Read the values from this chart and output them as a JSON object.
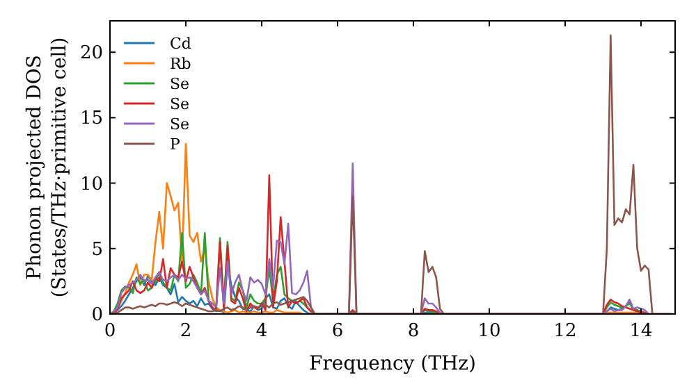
{
  "chart_data": {
    "type": "line",
    "xlabel": "Frequency (THz)",
    "ylabel": "Phonon projected DOS\n(States/THz·primitive cell)",
    "xlim": [
      0,
      14.9
    ],
    "ylim": [
      0,
      22.4
    ],
    "xticks": [
      0,
      2,
      4,
      6,
      8,
      10,
      12,
      14
    ],
    "yticks": [
      0,
      5,
      10,
      15,
      20
    ],
    "legend": "top left",
    "grid": false,
    "marker": "none",
    "line_style": "solid",
    "x": [
      0,
      0.1,
      0.2,
      0.3,
      0.4,
      0.5,
      0.6,
      0.7,
      0.8,
      0.9,
      1.0,
      1.1,
      1.2,
      1.3,
      1.4,
      1.5,
      1.6,
      1.7,
      1.8,
      1.9,
      2.0,
      2.1,
      2.2,
      2.3,
      2.4,
      2.5,
      2.6,
      2.7,
      2.8,
      2.9,
      3.0,
      3.1,
      3.2,
      3.3,
      3.4,
      3.5,
      3.6,
      3.7,
      3.8,
      3.9,
      4.0,
      4.1,
      4.2,
      4.3,
      4.4,
      4.5,
      4.6,
      4.7,
      4.8,
      4.9,
      5.0,
      5.1,
      5.2,
      5.3,
      5.4,
      5.5,
      6.3,
      6.4,
      6.5,
      8.2,
      8.3,
      8.4,
      8.5,
      8.6,
      8.7,
      8.8,
      13.0,
      13.1,
      13.2,
      13.3,
      13.4,
      13.5,
      13.6,
      13.7,
      13.8,
      13.9,
      14.0,
      14.1,
      14.2,
      14.3,
      14.8
    ],
    "series": [
      {
        "name": "Cd",
        "color": "#1f77b4",
        "values": [
          0,
          0.1,
          0.3,
          0.6,
          1.0,
          1.5,
          2.0,
          2.5,
          2.8,
          2.2,
          2.9,
          2.5,
          2.2,
          2.8,
          2.2,
          2.0,
          1.5,
          2.3,
          0.9,
          1.3,
          1.0,
          0.8,
          1.0,
          0.6,
          1.2,
          0.7,
          0.8,
          0.4,
          0.2,
          0.3,
          0.1,
          3.8,
          2.2,
          1.3,
          1.0,
          0.4,
          0.3,
          0.2,
          0.6,
          0.3,
          0.4,
          1.2,
          1.5,
          0.5,
          0.4,
          1.0,
          1.2,
          0.6,
          0.4,
          1.0,
          0.6,
          0.3,
          0.1,
          0,
          0,
          0,
          0,
          0.1,
          0,
          0,
          0.1,
          0.1,
          0.1,
          0.1,
          0,
          0,
          0,
          0.2,
          0.5,
          0.4,
          0.3,
          0.4,
          0.6,
          0.9,
          0.3,
          0.2,
          0.1,
          null,
          null,
          null,
          null
        ]
      },
      {
        "name": "Rb",
        "color": "#ff7f0e",
        "values": [
          0,
          0.1,
          0.4,
          1.0,
          1.6,
          2.4,
          3.0,
          3.8,
          2.2,
          3.0,
          3.0,
          2.6,
          5.5,
          7.8,
          5.0,
          10.0,
          9.0,
          7.9,
          8.5,
          4.0,
          13.0,
          6.0,
          5.5,
          6.2,
          4.0,
          5.0,
          2.5,
          1.2,
          0.5,
          0.3,
          0.2,
          0.1,
          0.2,
          0.3,
          0.1,
          0.2,
          0.1,
          0.1,
          0.2,
          0.1,
          0.1,
          0.2,
          0.1,
          0.1,
          0.3,
          0.2,
          0.1,
          0.1,
          0.1,
          0.1,
          0.1,
          0,
          0,
          0,
          0,
          0,
          0,
          0,
          0,
          0,
          0,
          0,
          0,
          0,
          0,
          0,
          0,
          0.1,
          0.1,
          0.1,
          0.1,
          0.1,
          0.1,
          0.1,
          0.1,
          0.1,
          0,
          0,
          null,
          null,
          null
        ]
      },
      {
        "name": "Se",
        "color": "#2ca02c",
        "values": [
          0,
          0.2,
          0.8,
          1.8,
          2.1,
          2.0,
          1.6,
          2.8,
          2.3,
          2.6,
          1.8,
          2.0,
          2.5,
          3.2,
          2.4,
          2.0,
          1.8,
          3.0,
          2.5,
          6.2,
          2.0,
          2.3,
          3.0,
          2.4,
          1.5,
          6.2,
          1.0,
          0.8,
          0.5,
          5.8,
          0.8,
          5.5,
          1.2,
          1.0,
          2.4,
          1.8,
          0.5,
          1.5,
          1.0,
          0.8,
          0.8,
          1.2,
          3.5,
          1.0,
          3.0,
          3.6,
          1.5,
          1.2,
          1.0,
          0.8,
          1.0,
          0.8,
          0.5,
          0.2,
          0,
          0,
          0,
          0.2,
          0,
          0,
          0.3,
          0.2,
          0.2,
          0.1,
          0,
          0,
          0,
          0.5,
          0.9,
          0.7,
          0.6,
          0.5,
          0.6,
          0.8,
          0.4,
          0.3,
          0.2,
          0.1,
          0,
          null,
          null
        ]
      },
      {
        "name": "Se",
        "color": "#d62728",
        "values": [
          0,
          0.1,
          0.4,
          1.2,
          1.5,
          1.8,
          2.5,
          1.8,
          1.6,
          1.8,
          2.4,
          2.0,
          2.8,
          2.5,
          4.2,
          2.0,
          3.5,
          3.0,
          2.8,
          4.0,
          2.5,
          3.6,
          2.8,
          2.0,
          1.5,
          2.0,
          1.0,
          0.5,
          0.3,
          5.5,
          0.5,
          5.2,
          1.0,
          0.8,
          2.0,
          1.2,
          0.2,
          0.8,
          0.5,
          0.4,
          0.8,
          0.3,
          10.6,
          0.5,
          2.5,
          7.4,
          4.0,
          0.5,
          1.0,
          0.8,
          1.0,
          1.2,
          0.5,
          0.2,
          0,
          0,
          0,
          0.3,
          0,
          0,
          0.4,
          0.3,
          0.3,
          0.2,
          0,
          0,
          0,
          0.7,
          1.1,
          0.9,
          0.8,
          0.6,
          0.5,
          0.4,
          0.3,
          0.2,
          0.1,
          0.1,
          0,
          0,
          0
        ]
      },
      {
        "name": "Se",
        "color": "#9467bd",
        "values": [
          0,
          0.2,
          0.5,
          1.6,
          2.0,
          2.2,
          2.4,
          2.6,
          3.0,
          2.5,
          2.6,
          2.3,
          2.8,
          3.2,
          2.6,
          2.5,
          2.8,
          3.0,
          2.6,
          3.0,
          2.7,
          2.8,
          2.5,
          2.0,
          1.5,
          1.8,
          1.0,
          0.8,
          0.5,
          3.5,
          0.8,
          4.0,
          1.5,
          2.4,
          3.0,
          1.8,
          1.0,
          2.8,
          2.4,
          2.6,
          2.3,
          1.5,
          4.2,
          2.0,
          5.6,
          5.5,
          3.8,
          6.9,
          1.6,
          1.5,
          1.8,
          2.4,
          3.3,
          0.5,
          0,
          0,
          0,
          11.5,
          0,
          0,
          1.2,
          0.8,
          0.8,
          0.5,
          0.1,
          0,
          0,
          0.2,
          0.4,
          0.2,
          0.3,
          0.3,
          0.6,
          1.1,
          0.4,
          0.5,
          0.4,
          0.3,
          0,
          0,
          0
        ]
      },
      {
        "name": "P",
        "color": "#8c564b",
        "values": [
          0,
          0.1,
          0.1,
          0.3,
          0.5,
          0.5,
          0.4,
          0.5,
          0.6,
          0.5,
          0.6,
          0.7,
          0.6,
          0.8,
          0.8,
          0.7,
          0.8,
          0.9,
          0.8,
          0.6,
          0.8,
          0.7,
          0.6,
          0.5,
          0.4,
          0.3,
          0.2,
          0.2,
          0.3,
          0.2,
          0.4,
          0.5,
          0.3,
          0.4,
          0.6,
          0.5,
          0.3,
          0.5,
          0.6,
          0.5,
          0.6,
          0.7,
          0.5,
          0.8,
          0.9,
          0.7,
          0.8,
          0.9,
          1.0,
          1.1,
          1.2,
          1.3,
          1.0,
          0.5,
          0,
          0,
          0,
          9.0,
          0,
          0,
          4.8,
          3.2,
          3.6,
          2.8,
          0.4,
          0,
          0,
          5.0,
          21.3,
          6.8,
          7.3,
          7.0,
          8.0,
          7.6,
          11.4,
          5.0,
          3.3,
          3.7,
          3.4,
          0,
          0
        ]
      }
    ]
  }
}
